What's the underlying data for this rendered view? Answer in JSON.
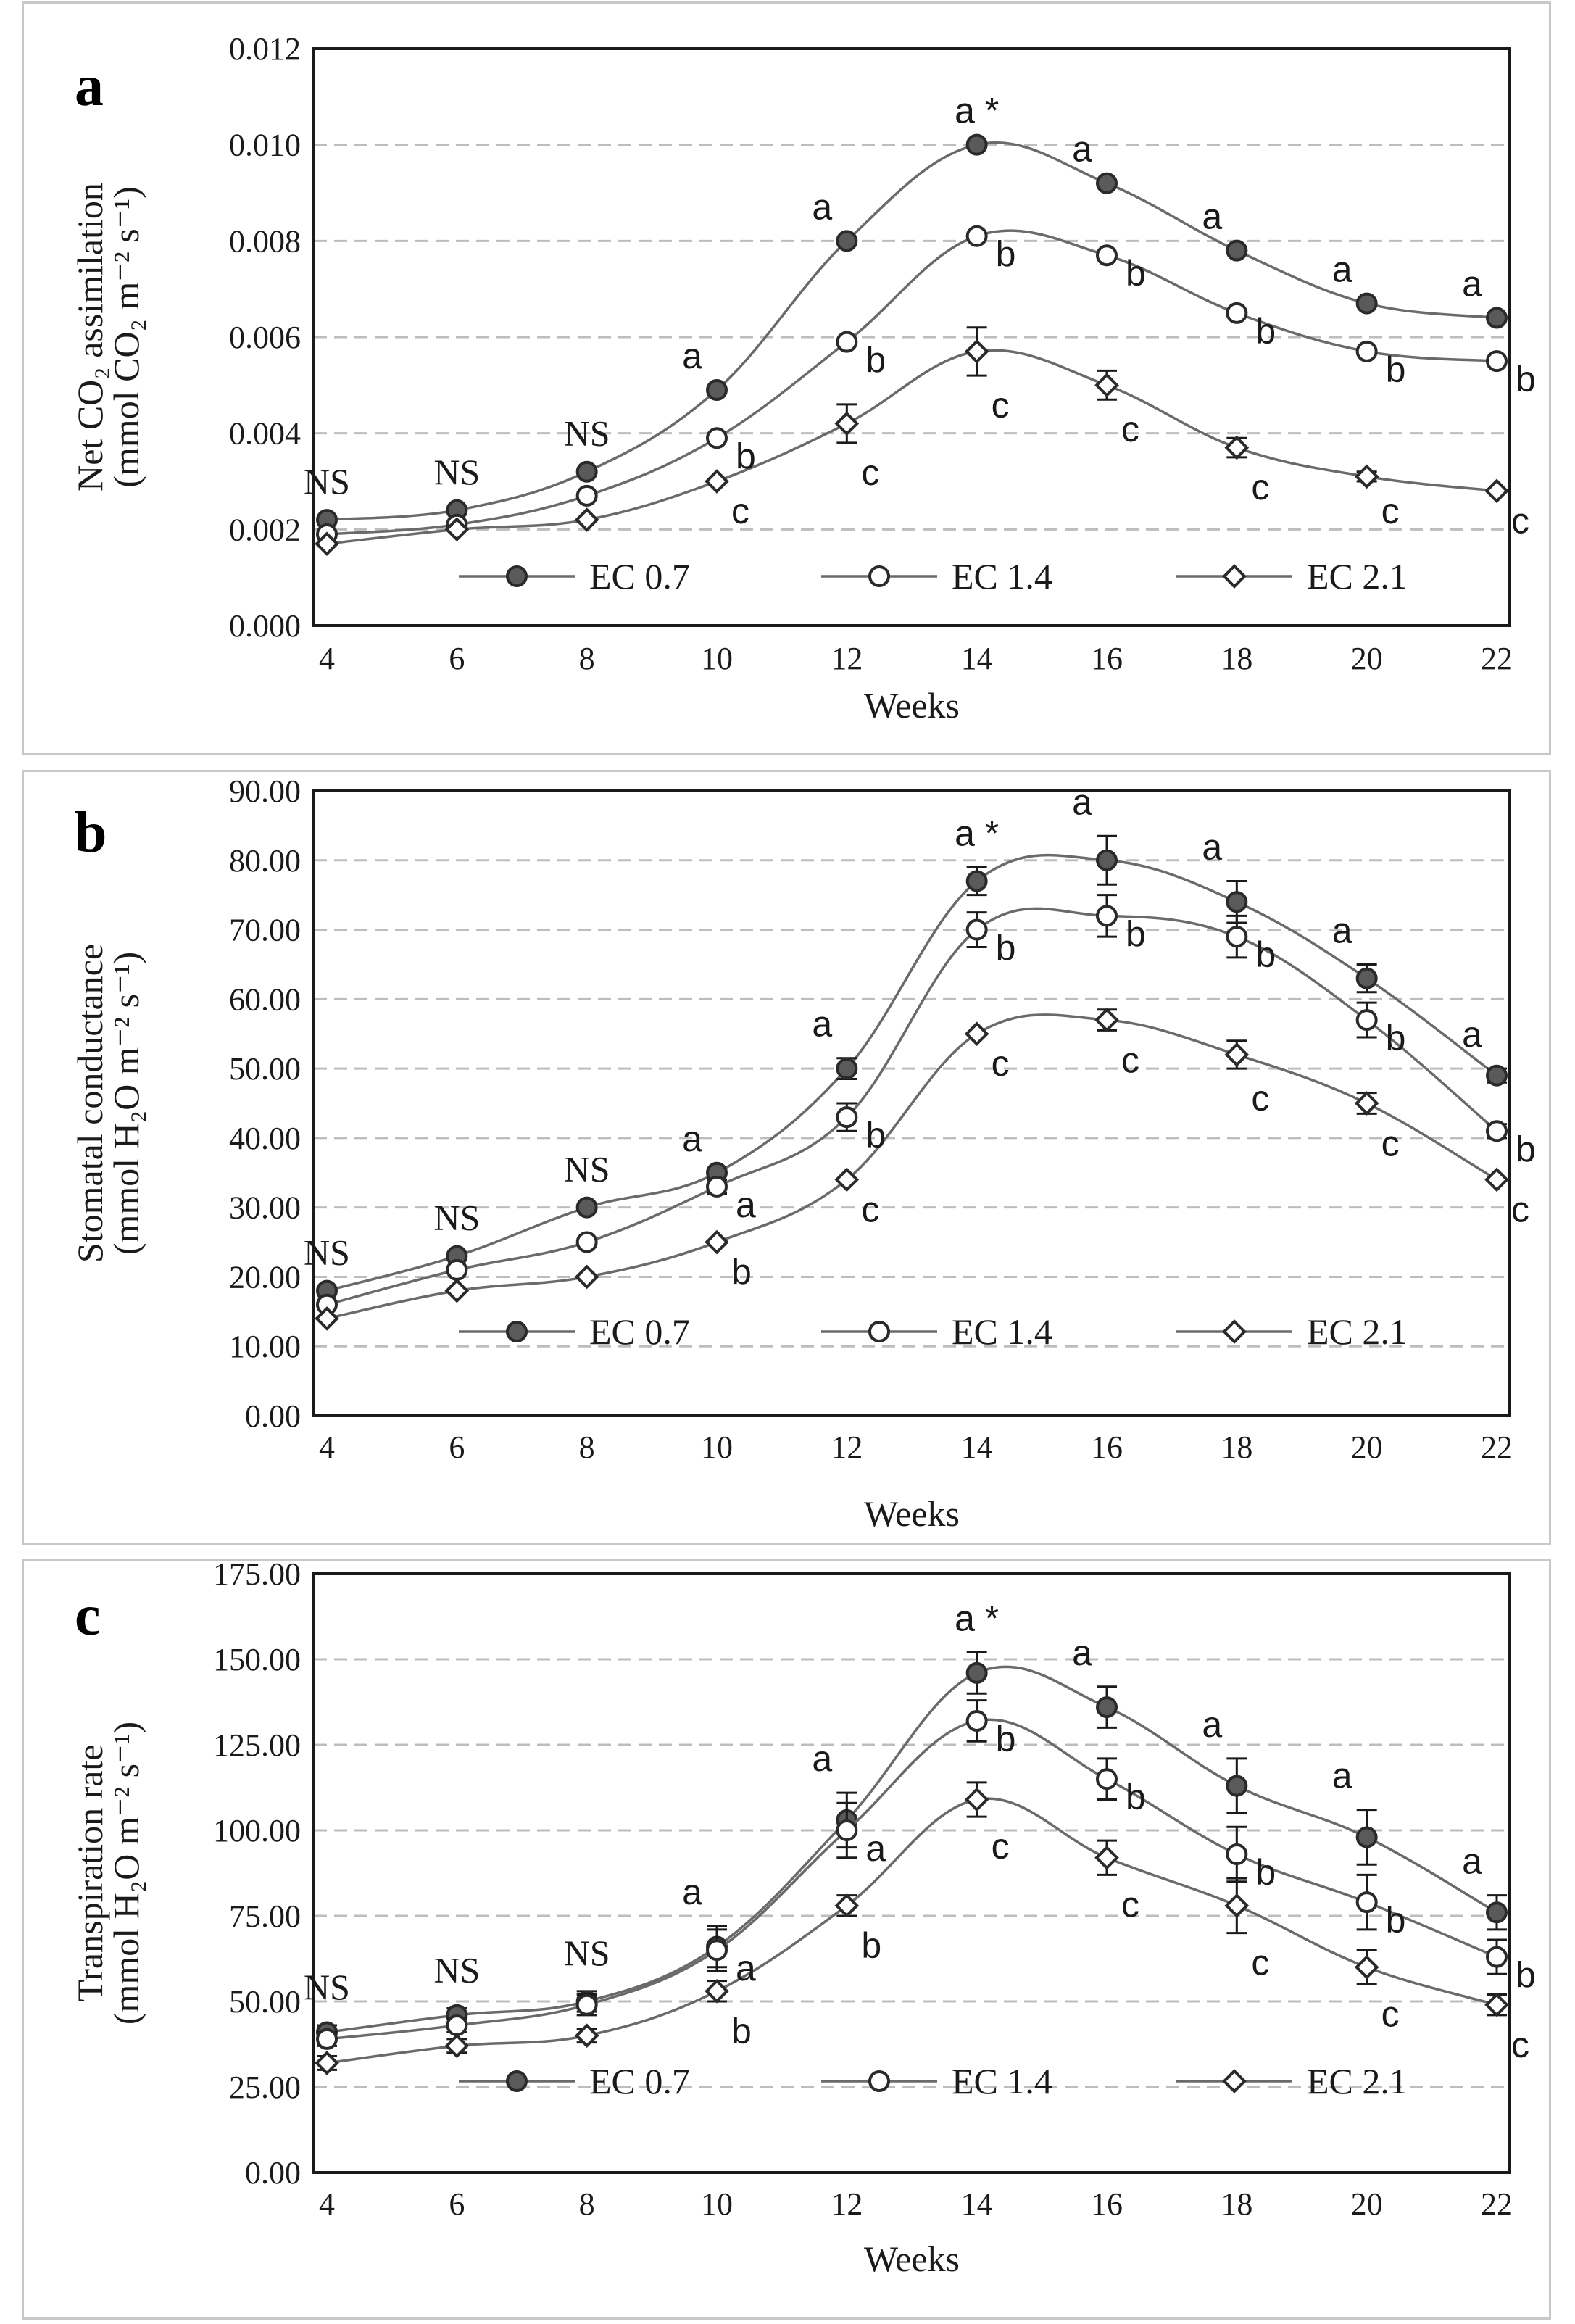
{
  "chart_data": [
    {
      "type": "line",
      "panel_label": "a",
      "title": "",
      "ylabel_line1": "Net CO₂ assimilation",
      "ylabel_line2": "(mmol CO₂ m⁻² s⁻¹)",
      "xlabel": "Weeks",
      "x": [
        4,
        6,
        8,
        10,
        12,
        14,
        16,
        18,
        20,
        22
      ],
      "ylim": [
        0,
        0.012
      ],
      "yticks": [
        0,
        0.002,
        0.004,
        0.006,
        0.008,
        0.01,
        0.012
      ],
      "ytick_labels": [
        "0.000",
        "0.002",
        "0.004",
        "0.006",
        "0.008",
        "0.010",
        "0.012"
      ],
      "series": [
        {
          "name": "EC 0.7",
          "marker": "filled-circle",
          "values": [
            0.0022,
            0.0024,
            0.0032,
            0.0049,
            0.008,
            0.01,
            0.0092,
            0.0078,
            0.0067,
            0.0064
          ],
          "errors": [
            0,
            0,
            0,
            0,
            0,
            0,
            0,
            0,
            0,
            0
          ],
          "letters": [
            "NS",
            "NS",
            "NS",
            "a",
            "a",
            "a *",
            "a",
            "a",
            "a",
            "a"
          ]
        },
        {
          "name": "EC 1.4",
          "marker": "open-circle",
          "values": [
            0.0019,
            0.0021,
            0.0027,
            0.0039,
            0.0059,
            0.0081,
            0.0077,
            0.0065,
            0.0057,
            0.0055
          ],
          "errors": [
            0,
            0,
            0,
            0,
            0,
            0,
            0,
            0,
            0,
            0
          ],
          "letters": [
            "",
            "",
            "",
            "b",
            "b",
            "b",
            "b",
            "b",
            "b",
            "b"
          ]
        },
        {
          "name": "EC 2.1",
          "marker": "open-diamond",
          "values": [
            0.0017,
            0.002,
            0.0022,
            0.003,
            0.0042,
            0.0057,
            0.005,
            0.0037,
            0.0031,
            0.0028
          ],
          "errors": [
            0,
            0,
            0,
            0,
            0.0004,
            0.0005,
            0.0003,
            0.0002,
            0.0001,
            0
          ],
          "letters": [
            "",
            "",
            "",
            "c",
            "c",
            "c",
            "c",
            "c",
            "c",
            "c"
          ]
        }
      ],
      "legend": [
        "EC 0.7",
        "EC 1.4",
        "EC 2.1"
      ],
      "legend_position": "bottom-inside",
      "grid": true
    },
    {
      "type": "line",
      "panel_label": "b",
      "title": "",
      "ylabel_line1": "Stomatal conductance",
      "ylabel_line2": "(mmol H₂O m⁻² s⁻¹)",
      "xlabel": "Weeks",
      "x": [
        4,
        6,
        8,
        10,
        12,
        14,
        16,
        18,
        20,
        22
      ],
      "ylim": [
        0,
        90
      ],
      "yticks": [
        0,
        10,
        20,
        30,
        40,
        50,
        60,
        70,
        80,
        90
      ],
      "ytick_labels": [
        "0.00",
        "10.00",
        "20.00",
        "30.00",
        "40.00",
        "50.00",
        "60.00",
        "70.00",
        "80.00",
        "90.00"
      ],
      "series": [
        {
          "name": "EC 0.7",
          "marker": "filled-circle",
          "values": [
            18,
            23,
            30,
            35,
            50,
            77,
            80,
            74,
            63,
            49
          ],
          "errors": [
            0,
            0,
            0,
            0,
            1.5,
            2,
            3.5,
            3,
            2,
            1
          ],
          "letters": [
            "NS",
            "NS",
            "NS",
            "a",
            "a",
            "a *",
            "a",
            "a",
            "a",
            "a"
          ]
        },
        {
          "name": "EC 1.4",
          "marker": "open-circle",
          "values": [
            16,
            21,
            25,
            33,
            43,
            70,
            72,
            69,
            57,
            41
          ],
          "errors": [
            0,
            0,
            0,
            1,
            2,
            2.5,
            3,
            3,
            2.5,
            1
          ],
          "letters": [
            "",
            "",
            "",
            "a",
            "b",
            "b",
            "b",
            "b",
            "b",
            "b"
          ]
        },
        {
          "name": "EC 2.1",
          "marker": "open-diamond",
          "values": [
            14,
            18,
            20,
            25,
            34,
            55,
            57,
            52,
            45,
            34
          ],
          "errors": [
            0,
            0,
            0,
            0,
            0,
            0,
            1.5,
            2,
            1.5,
            0
          ],
          "letters": [
            "",
            "",
            "",
            "b",
            "c",
            "c",
            "c",
            "c",
            "c",
            "c"
          ]
        }
      ],
      "legend": [
        "EC 0.7",
        "EC 1.4",
        "EC 2.1"
      ],
      "legend_position": "bottom-inside",
      "grid": true
    },
    {
      "type": "line",
      "panel_label": "c",
      "title": "",
      "ylabel_line1": "Transpiration rate",
      "ylabel_line2": "(mmol H₂O m⁻² s⁻¹)",
      "xlabel": "Weeks",
      "x": [
        4,
        6,
        8,
        10,
        12,
        14,
        16,
        18,
        20,
        22
      ],
      "ylim": [
        0,
        175
      ],
      "yticks": [
        0,
        25,
        50,
        75,
        100,
        125,
        150,
        175
      ],
      "ytick_labels": [
        "0.00",
        "25.00",
        "50.00",
        "75.00",
        "100.00",
        "125.00",
        "150.00",
        "175.00"
      ],
      "series": [
        {
          "name": "EC 0.7",
          "marker": "filled-circle",
          "values": [
            41,
            46,
            50,
            66,
            103,
            146,
            136,
            113,
            98,
            76
          ],
          "errors": [
            2,
            2,
            3,
            6,
            8,
            6,
            6,
            8,
            8,
            5
          ],
          "letters": [
            "NS",
            "NS",
            "NS",
            "a",
            "a",
            "a *",
            "a",
            "a",
            "a",
            "a"
          ]
        },
        {
          "name": "EC 1.4",
          "marker": "open-circle",
          "values": [
            39,
            43,
            49,
            65,
            100,
            132,
            115,
            93,
            79,
            63
          ],
          "errors": [
            2,
            2,
            3,
            6,
            8,
            6,
            6,
            8,
            8,
            5
          ],
          "letters": [
            "",
            "",
            "",
            "a",
            "a",
            "b",
            "b",
            "b",
            "b",
            "b"
          ]
        },
        {
          "name": "EC 2.1",
          "marker": "open-diamond",
          "values": [
            32,
            37,
            40,
            53,
            78,
            109,
            92,
            78,
            60,
            49
          ],
          "errors": [
            2,
            2,
            2,
            3,
            3,
            5,
            5,
            8,
            5,
            3
          ],
          "letters": [
            "",
            "",
            "",
            "b",
            "b",
            "c",
            "c",
            "c",
            "c",
            "c"
          ]
        }
      ],
      "legend": [
        "EC 0.7",
        "EC 1.4",
        "EC 2.1"
      ],
      "legend_position": "bottom-inside",
      "grid": true
    }
  ]
}
